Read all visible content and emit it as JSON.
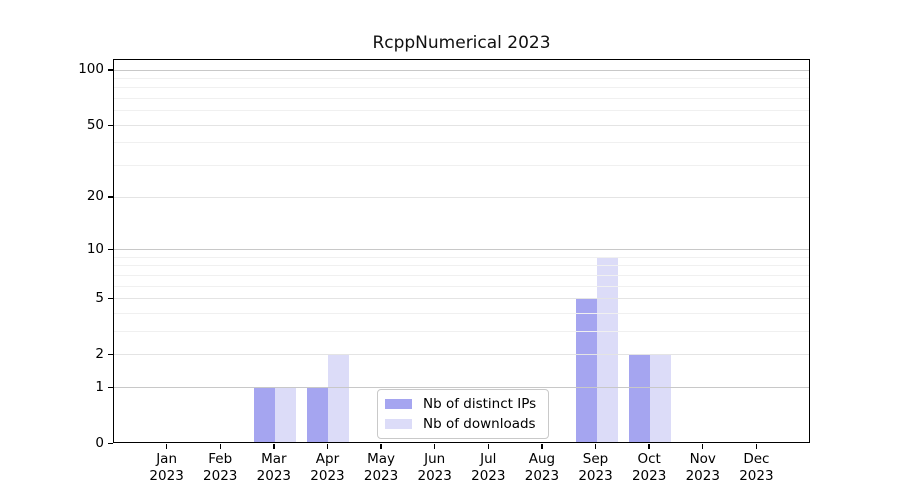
{
  "title": "RcppNumerical 2023",
  "chart_data": {
    "type": "bar",
    "title": "RcppNumerical 2023",
    "categories": [
      "Jan",
      "Feb",
      "Mar",
      "Apr",
      "May",
      "Jun",
      "Jul",
      "Aug",
      "Sep",
      "Oct",
      "Nov",
      "Dec"
    ],
    "category_year": "2023",
    "series": [
      {
        "name": "Nb of distinct IPs",
        "color": "#a5a5f0",
        "values": [
          0,
          0,
          1,
          1,
          0,
          0,
          0,
          0,
          5,
          2,
          0,
          0
        ]
      },
      {
        "name": "Nb of downloads",
        "color": "#dcdcf8",
        "values": [
          0,
          0,
          1,
          2,
          0,
          0,
          0,
          0,
          9,
          2,
          0,
          0
        ]
      }
    ],
    "yscale": "log1p",
    "yticks": [
      0,
      1,
      2,
      5,
      10,
      20,
      50,
      100
    ],
    "minor_gridlines": [
      3,
      4,
      6,
      7,
      8,
      9,
      30,
      40,
      60,
      70,
      80,
      90
    ],
    "ylim": [
      0,
      115
    ],
    "grid": true,
    "legend_position": "lower center",
    "colors": {
      "grid_decade": "#c8c8c8",
      "grid_labeled": "#e4e4e4",
      "grid_minor": "#f0f0f0",
      "spine": "#000000"
    }
  }
}
